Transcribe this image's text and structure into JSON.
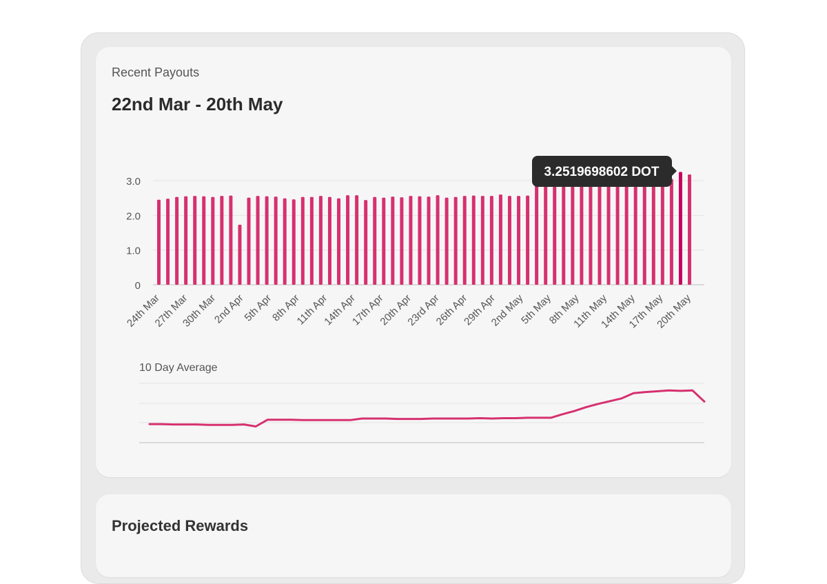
{
  "payouts": {
    "subtitle": "Recent Payouts",
    "title": "22nd Mar - 20th May",
    "tooltip": "3.2519698602 DOT",
    "avg_label": "10 Day Average"
  },
  "projected": {
    "title": "Projected Rewards"
  },
  "colors": {
    "accent": "#d6306f",
    "tooltip_bg": "#2b2b2b",
    "card_bg": "#f6f6f6"
  },
  "chart_data": [
    {
      "type": "bar",
      "title": "",
      "xlabel": "",
      "ylabel": "",
      "ylim": [
        0,
        3.3
      ],
      "y_ticks": [
        "0",
        "1.0",
        "2.0",
        "3.0"
      ],
      "x_tick_labels": [
        "24th Mar",
        "27th Mar",
        "30th Mar",
        "2nd Apr",
        "5th Apr",
        "8th Apr",
        "11th Apr",
        "14th Apr",
        "17th Apr",
        "20th Apr",
        "23rd Apr",
        "26th Apr",
        "29th Apr",
        "2nd May",
        "5th May",
        "8th May",
        "11th May",
        "14th May",
        "17th May",
        "20th May"
      ],
      "values": [
        2.45,
        2.48,
        2.53,
        2.55,
        2.56,
        2.55,
        2.53,
        2.56,
        2.57,
        1.73,
        2.51,
        2.56,
        2.55,
        2.54,
        2.49,
        2.46,
        2.53,
        2.53,
        2.56,
        2.53,
        2.49,
        2.58,
        2.58,
        2.44,
        2.53,
        2.51,
        2.54,
        2.52,
        2.56,
        2.55,
        2.54,
        2.58,
        2.51,
        2.53,
        2.56,
        2.57,
        2.56,
        2.56,
        2.6,
        2.56,
        2.56,
        2.57,
        3.05,
        3.05,
        3.05,
        3.05,
        3.05,
        3.05,
        3.05,
        3.05,
        3.05,
        3.05,
        3.05,
        3.05,
        3.05,
        3.05,
        3.18,
        3.05,
        3.25,
        3.18
      ],
      "highlighted_value": 3.2519698602,
      "grid": true
    },
    {
      "type": "line",
      "title": "10 Day Average",
      "values": [
        2.47,
        2.47,
        2.46,
        2.46,
        2.46,
        2.45,
        2.45,
        2.45,
        2.46,
        2.41,
        2.58,
        2.58,
        2.58,
        2.57,
        2.57,
        2.57,
        2.57,
        2.57,
        2.61,
        2.61,
        2.61,
        2.6,
        2.6,
        2.6,
        2.61,
        2.61,
        2.61,
        2.61,
        2.62,
        2.61,
        2.62,
        2.62,
        2.63,
        2.63,
        2.63,
        2.72,
        2.8,
        2.9,
        2.98,
        3.05,
        3.12,
        3.25,
        3.28,
        3.3,
        3.32,
        3.31,
        3.32,
        3.04
      ],
      "grid": true
    }
  ]
}
